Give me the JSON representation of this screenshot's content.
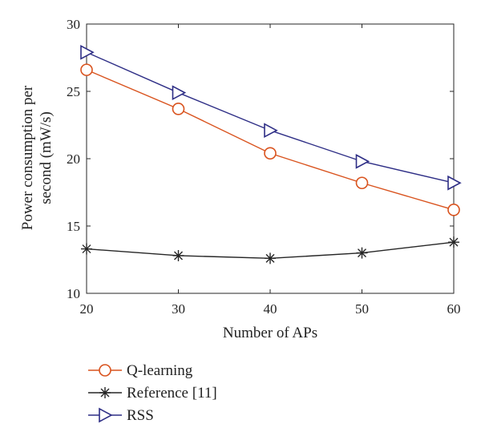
{
  "chart_data": {
    "type": "line",
    "xlabel": "Number of APs",
    "ylabel_lines": [
      "Power consumption per",
      "second (mW/s)"
    ],
    "x": [
      20,
      30,
      40,
      50,
      60
    ],
    "xlim": [
      20,
      60
    ],
    "ylim": [
      10,
      30
    ],
    "xticks": [
      "20",
      "30",
      "40",
      "50",
      "60"
    ],
    "yticks": [
      "10",
      "15",
      "20",
      "25",
      "30"
    ],
    "grid": false,
    "legend_position": "below",
    "series": [
      {
        "name": "Q-learning",
        "values": [
          26.6,
          23.7,
          20.4,
          18.2,
          16.2
        ],
        "color": "#d9531e",
        "marker": "circle"
      },
      {
        "name": "Reference [11]",
        "values": [
          13.3,
          12.8,
          12.6,
          13.0,
          13.8
        ],
        "color": "#262626",
        "marker": "asterisk"
      },
      {
        "name": "RSS",
        "values": [
          27.9,
          24.9,
          22.1,
          19.8,
          18.2
        ],
        "color": "#2e2e86",
        "marker": "triangle-right"
      }
    ]
  }
}
